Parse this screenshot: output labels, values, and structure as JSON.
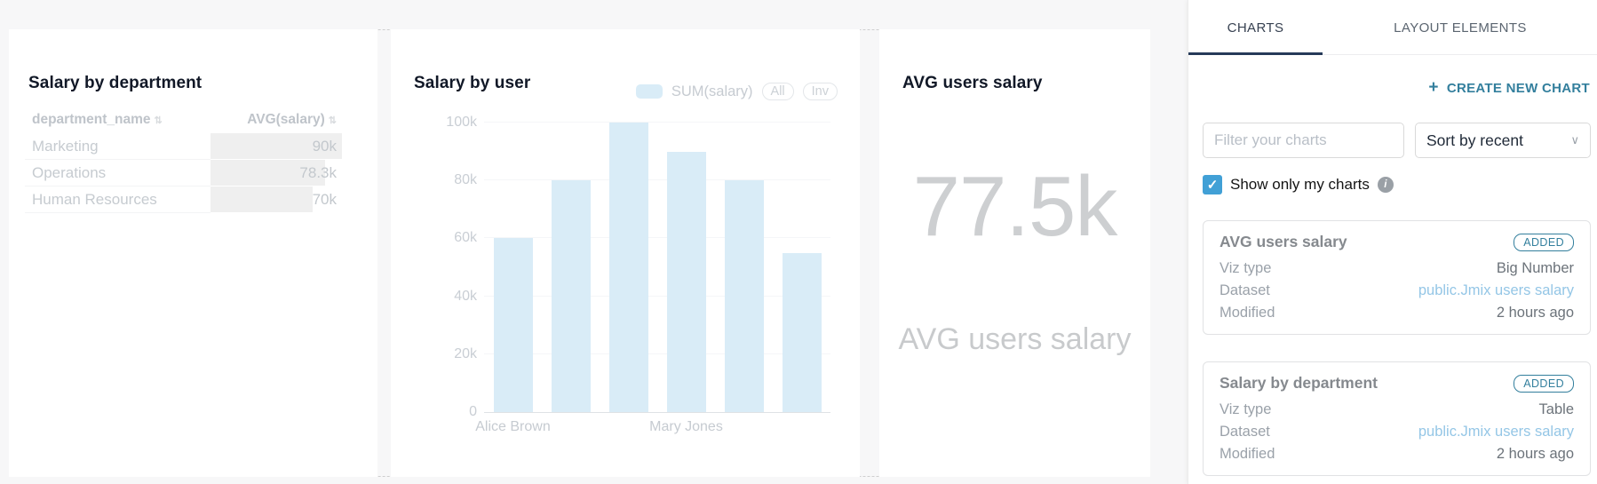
{
  "colors": {
    "accent_teal": "#337f9d",
    "checkbox_blue": "#41a0d6",
    "bar_fill": "#d9ecf7",
    "dataset_link": "#94c6e6",
    "active_tab_underline": "#263a59"
  },
  "icons": {
    "plus": "+",
    "check": "✓",
    "chevron_down": "∨",
    "info": "i",
    "sort": "⇅"
  },
  "chart_data": [
    {
      "type": "table",
      "title": "Salary by department",
      "columns": [
        "department_name",
        "AVG(salary)"
      ],
      "rows": [
        [
          "Marketing",
          "90k"
        ],
        [
          "Operations",
          "78.3k"
        ],
        [
          "Human Resources",
          "70k"
        ]
      ],
      "numeric_values": [
        90000,
        78300,
        70000
      ],
      "bar_widths_pct": [
        100,
        87,
        78
      ]
    },
    {
      "type": "bar",
      "title": "Salary by user",
      "series": [
        {
          "name": "SUM(salary)",
          "values": [
            60000,
            80000,
            100000,
            90000,
            80000,
            55000
          ]
        }
      ],
      "legend_buttons": [
        "All",
        "Inv"
      ],
      "legend_position": "top-right",
      "categories_shown": [
        "Alice Brown",
        "Mary Jones"
      ],
      "y_ticks": [
        "0",
        "20k",
        "40k",
        "60k",
        "80k",
        "100k"
      ],
      "ylim": [
        0,
        100000
      ],
      "grid": true
    },
    {
      "type": "big_number",
      "title": "AVG users salary",
      "value": "77.5k",
      "numeric_value": 77500,
      "subtitle": "AVG users salary"
    }
  ],
  "sidebar": {
    "tabs": [
      {
        "label": "CHARTS"
      },
      {
        "label": "LAYOUT ELEMENTS"
      }
    ],
    "create_button_label": "CREATE NEW CHART",
    "filter_placeholder": "Filter your charts",
    "sort_selected": "Sort by recent",
    "checkbox_label": "Show only my charts",
    "cards": [
      {
        "title": "AVG users salary",
        "badge": "ADDED",
        "rows": [
          {
            "label": "Viz type",
            "value": "Big Number"
          },
          {
            "label": "Dataset",
            "value": "public.Jmix users salary"
          },
          {
            "label": "Modified",
            "value": "2 hours ago"
          }
        ]
      },
      {
        "title": "Salary by department",
        "badge": "ADDED",
        "rows": [
          {
            "label": "Viz type",
            "value": "Table"
          },
          {
            "label": "Dataset",
            "value": "public.Jmix users salary"
          },
          {
            "label": "Modified",
            "value": "2 hours ago"
          }
        ]
      }
    ]
  }
}
